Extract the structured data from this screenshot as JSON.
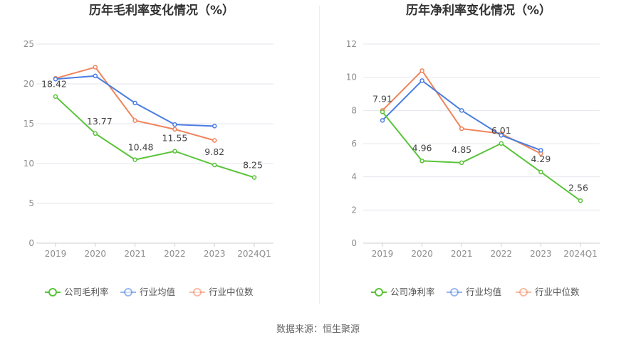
{
  "source_text": "数据来源：恒生聚源",
  "chart_data": [
    {
      "type": "line",
      "title": "历年毛利率变化情况（%）",
      "categories": [
        "2019",
        "2020",
        "2021",
        "2022",
        "2023",
        "2024Q1"
      ],
      "ylim": [
        0,
        25
      ],
      "yticks": [
        0,
        5,
        10,
        15,
        20,
        25
      ],
      "grid": true,
      "legend_position": "bottom",
      "series": [
        {
          "name": "公司毛利率",
          "color": "#5ac43a",
          "values": [
            18.42,
            13.77,
            10.48,
            11.55,
            9.82,
            8.25
          ],
          "labels": [
            "18.42",
            "13.77",
            "10.48",
            "11.55",
            "9.82",
            "8.25"
          ]
        },
        {
          "name": "行业均值",
          "color": "#4a7de0",
          "values": [
            20.6,
            21.0,
            17.6,
            14.9,
            14.7,
            null
          ]
        },
        {
          "name": "行业中位数",
          "color": "#f0845c",
          "values": [
            20.7,
            22.1,
            15.4,
            14.3,
            12.9,
            null
          ]
        }
      ]
    },
    {
      "type": "line",
      "title": "历年净利率变化情况（%）",
      "categories": [
        "2019",
        "2020",
        "2021",
        "2022",
        "2023",
        "2024Q1"
      ],
      "ylim": [
        0,
        12
      ],
      "yticks": [
        0,
        2,
        4,
        6,
        8,
        10,
        12
      ],
      "grid": true,
      "legend_position": "bottom",
      "series": [
        {
          "name": "公司净利率",
          "color": "#5ac43a",
          "values": [
            7.91,
            4.96,
            4.85,
            6.01,
            4.29,
            2.56
          ],
          "labels": [
            "7.91",
            "4.96",
            "4.85",
            "6.01",
            "4.29",
            "2.56"
          ]
        },
        {
          "name": "行业均值",
          "color": "#4a7de0",
          "values": [
            7.4,
            9.8,
            8.0,
            6.5,
            5.6,
            null
          ]
        },
        {
          "name": "行业中位数",
          "color": "#f0845c",
          "values": [
            8.0,
            10.4,
            6.9,
            6.6,
            5.4,
            null
          ]
        }
      ]
    }
  ]
}
